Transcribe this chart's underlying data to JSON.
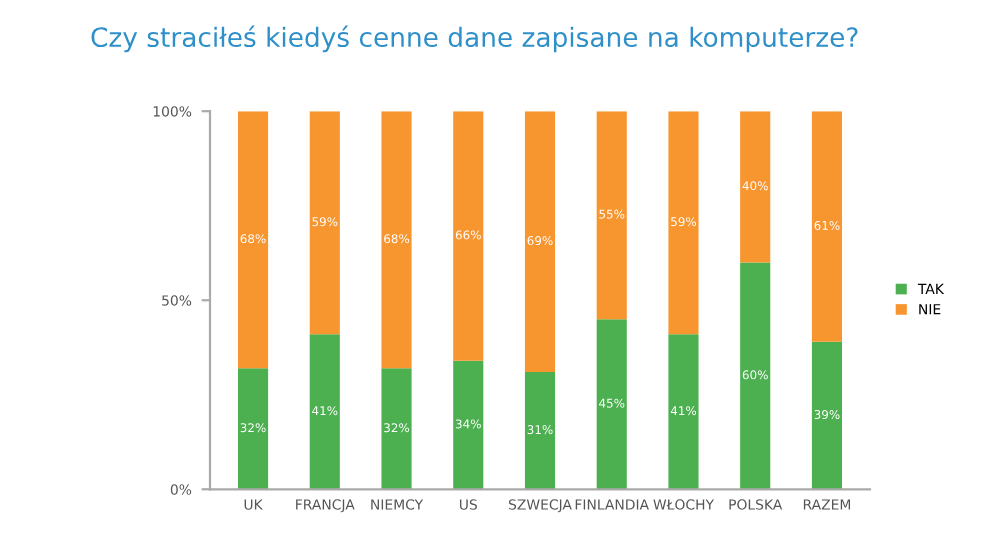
{
  "chart_data": {
    "type": "bar",
    "stacked": true,
    "title": "Czy straciłeś kiedyś cenne dane zapisane na komputerze?",
    "categories": [
      "UK",
      "FRANCJA",
      "NIEMCY",
      "US",
      "SZWECJA",
      "FINLANDIA",
      "WŁOCHY",
      "POLSKA",
      "RAZEM"
    ],
    "series": [
      {
        "name": "TAK",
        "color": "#4cb050",
        "values": [
          32,
          41,
          32,
          34,
          31,
          45,
          41,
          60,
          39
        ],
        "value_labels": [
          "32%",
          "41%",
          "32%",
          "34%",
          "31%",
          "45%",
          "41%",
          "60%",
          "39%"
        ]
      },
      {
        "name": "NIE",
        "color": "#f7952f",
        "values": [
          68,
          59,
          68,
          66,
          69,
          55,
          59,
          40,
          61
        ],
        "value_labels": [
          "68%",
          "59%",
          "68%",
          "66%",
          "69%",
          "55%",
          "59%",
          "40%",
          "61%"
        ]
      }
    ],
    "ylim": [
      0,
      100
    ],
    "yticks": [
      {
        "value": 0,
        "label": "0%"
      },
      {
        "value": 50,
        "label": "50%"
      },
      {
        "value": 100,
        "label": "100%"
      }
    ],
    "grid": false,
    "legend": "right"
  }
}
